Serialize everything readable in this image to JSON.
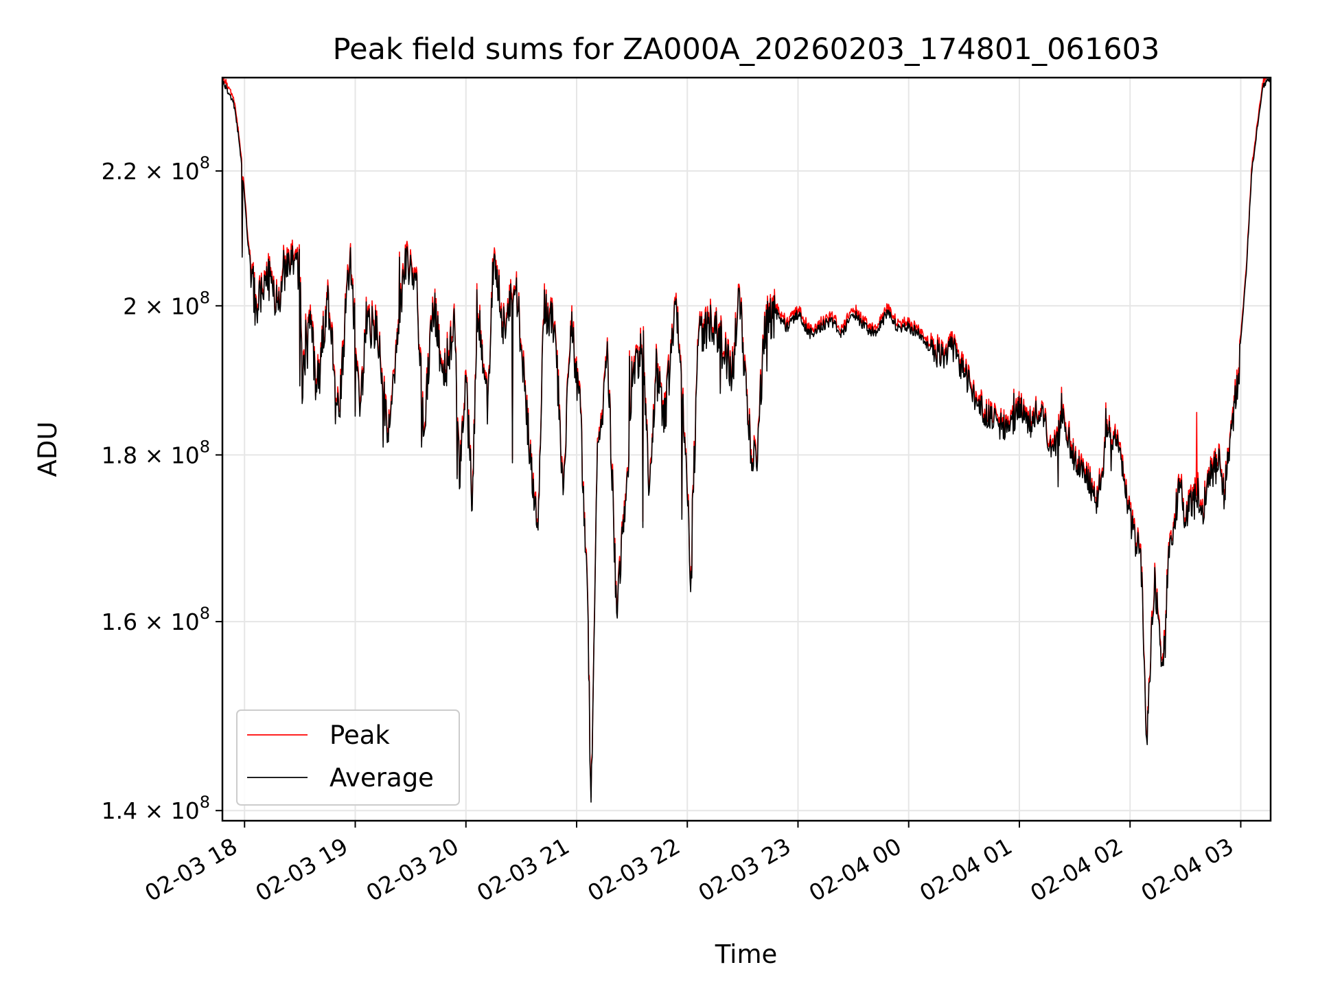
{
  "chart_data": {
    "type": "line",
    "title": "Peak field sums for ZA000A_20260203_174801_061603",
    "xlabel": "Time",
    "ylabel": "ADU",
    "yscale": "log",
    "x_unit": "hours since 2026-02-03 00:00",
    "xlim": [
      17.8,
      27.27
    ],
    "ylim": [
      139000000.0,
      235000000.0
    ],
    "grid": true,
    "legend_position": "lower-left",
    "x_ticks": [
      {
        "value": 18,
        "label": "02-03 18"
      },
      {
        "value": 19,
        "label": "02-03 19"
      },
      {
        "value": 20,
        "label": "02-03 20"
      },
      {
        "value": 21,
        "label": "02-03 21"
      },
      {
        "value": 22,
        "label": "02-03 22"
      },
      {
        "value": 23,
        "label": "02-03 23"
      },
      {
        "value": 24,
        "label": "02-04 00"
      },
      {
        "value": 25,
        "label": "02-04 01"
      },
      {
        "value": 26,
        "label": "02-04 02"
      },
      {
        "value": 27,
        "label": "02-04 03"
      }
    ],
    "y_ticks": [
      {
        "value": 140000000,
        "mantissa": "1.4",
        "exponent": "8"
      },
      {
        "value": 160000000,
        "mantissa": "1.6",
        "exponent": "8"
      },
      {
        "value": 180000000,
        "mantissa": "1.8",
        "exponent": "8"
      },
      {
        "value": 200000000,
        "mantissa": "2",
        "exponent": "8"
      },
      {
        "value": 220000000,
        "mantissa": "2.2",
        "exponent": "8"
      }
    ],
    "y_tick_times": "×",
    "y_tick_base": "10",
    "legend": [
      {
        "name": "Peak",
        "color": "#ff0000"
      },
      {
        "name": "Average",
        "color": "#000000"
      }
    ],
    "average_anchors": [
      [
        17.8,
        234500000.0
      ],
      [
        17.9,
        231000000.0
      ],
      [
        17.95,
        225000000.0
      ],
      [
        18.0,
        216000000.0
      ],
      [
        18.03,
        209000000.0
      ],
      [
        18.08,
        203000000.0
      ],
      [
        18.1,
        198000000.0
      ],
      [
        18.2,
        205000000.0
      ],
      [
        18.3,
        200000000.0
      ],
      [
        18.4,
        206000000.0
      ],
      [
        18.5,
        205000000.0
      ],
      [
        18.52,
        189000000.0
      ],
      [
        18.6,
        198000000.0
      ],
      [
        18.65,
        188000000.0
      ],
      [
        18.75,
        201000000.0
      ],
      [
        18.85,
        185000000.0
      ],
      [
        18.95,
        207000000.0
      ],
      [
        19.05,
        186000000.0
      ],
      [
        19.1,
        198000000.0
      ],
      [
        19.2,
        196000000.0
      ],
      [
        19.3,
        182000000.0
      ],
      [
        19.45,
        206000000.0
      ],
      [
        19.55,
        204000000.0
      ],
      [
        19.62,
        182000000.0
      ],
      [
        19.7,
        201000000.0
      ],
      [
        19.8,
        190000000.0
      ],
      [
        19.9,
        198000000.0
      ],
      [
        19.94,
        177000000.0
      ],
      [
        20.0,
        189000000.0
      ],
      [
        20.06,
        174000000.0
      ],
      [
        20.1,
        200000000.0
      ],
      [
        20.2,
        186000000.0
      ],
      [
        20.25,
        207000000.0
      ],
      [
        20.35,
        196000000.0
      ],
      [
        20.45,
        204000000.0
      ],
      [
        20.58,
        180000000.0
      ],
      [
        20.65,
        171000000.0
      ],
      [
        20.7,
        200000000.0
      ],
      [
        20.8,
        197000000.0
      ],
      [
        20.88,
        176000000.0
      ],
      [
        20.95,
        198000000.0
      ],
      [
        21.03,
        186000000.0
      ],
      [
        21.1,
        164000000.0
      ],
      [
        21.13,
        139000000.0
      ],
      [
        21.18,
        178000000.0
      ],
      [
        21.28,
        194000000.0
      ],
      [
        21.36,
        162000000.0
      ],
      [
        21.45,
        175000000.0
      ],
      [
        21.5,
        190000000.0
      ],
      [
        21.6,
        195000000.0
      ],
      [
        21.65,
        176000000.0
      ],
      [
        21.72,
        190000000.0
      ],
      [
        21.8,
        185000000.0
      ],
      [
        21.9,
        200000000.0
      ],
      [
        21.97,
        185000000.0
      ],
      [
        22.03,
        166000000.0
      ],
      [
        22.1,
        195000000.0
      ],
      [
        22.2,
        198000000.0
      ],
      [
        22.3,
        195000000.0
      ],
      [
        22.4,
        190000000.0
      ],
      [
        22.47,
        201000000.0
      ],
      [
        22.57,
        182000000.0
      ],
      [
        22.62,
        178000000.0
      ],
      [
        22.7,
        197000000.0
      ],
      [
        22.8,
        199000000.0
      ],
      [
        22.9,
        197000000.0
      ],
      [
        23.0,
        199000000.0
      ],
      [
        23.1,
        196000000.0
      ],
      [
        23.2,
        197000000.0
      ],
      [
        23.3,
        198000000.0
      ],
      [
        23.4,
        196000000.0
      ],
      [
        23.5,
        199000000.0
      ],
      [
        23.6,
        197000000.0
      ],
      [
        23.7,
        196000000.0
      ],
      [
        23.8,
        199000000.0
      ],
      [
        23.9,
        197000000.0
      ],
      [
        24.0,
        197000000.0
      ],
      [
        24.1,
        196000000.0
      ],
      [
        24.2,
        194000000.0
      ],
      [
        24.3,
        193000000.0
      ],
      [
        24.4,
        194000000.0
      ],
      [
        24.5,
        191000000.0
      ],
      [
        24.6,
        187000000.0
      ],
      [
        24.7,
        185000000.0
      ],
      [
        24.8,
        184000000.0
      ],
      [
        24.9,
        183000000.0
      ],
      [
        25.0,
        186000000.0
      ],
      [
        25.1,
        184000000.0
      ],
      [
        25.2,
        186000000.0
      ],
      [
        25.3,
        180000000.0
      ],
      [
        25.4,
        185000000.0
      ],
      [
        25.5,
        179000000.0
      ],
      [
        25.6,
        178000000.0
      ],
      [
        25.7,
        174000000.0
      ],
      [
        25.8,
        183000000.0
      ],
      [
        25.9,
        181000000.0
      ],
      [
        26.0,
        172000000.0
      ],
      [
        26.1,
        167000000.0
      ],
      [
        26.15,
        147000000.0
      ],
      [
        26.22,
        165000000.0
      ],
      [
        26.3,
        155000000.0
      ],
      [
        26.35,
        168000000.0
      ],
      [
        26.45,
        176000000.0
      ],
      [
        26.5,
        172000000.0
      ],
      [
        26.6,
        176000000.0
      ],
      [
        26.65,
        172000000.0
      ],
      [
        26.7,
        177000000.0
      ],
      [
        26.8,
        179000000.0
      ],
      [
        26.85,
        175000000.0
      ],
      [
        26.93,
        185000000.0
      ],
      [
        26.98,
        190000000.0
      ],
      [
        27.0,
        195000000.0
      ],
      [
        27.05,
        205000000.0
      ],
      [
        27.1,
        220000000.0
      ],
      [
        27.2,
        233500000.0
      ],
      [
        27.27,
        235000000.0
      ]
    ],
    "spikes": [
      [
        17.98,
        207000000.0
      ],
      [
        18.09,
        204000000.0
      ],
      [
        18.35,
        208000000.0
      ],
      [
        18.5,
        189000000.0
      ],
      [
        18.55,
        198000000.0
      ],
      [
        18.68,
        188000000.0
      ],
      [
        18.82,
        184000000.0
      ],
      [
        19.0,
        185000000.0
      ],
      [
        19.25,
        181000000.0
      ],
      [
        19.4,
        207000000.0
      ],
      [
        19.6,
        181000000.0
      ],
      [
        19.92,
        177000000.0
      ],
      [
        20.05,
        173000000.0
      ],
      [
        20.42,
        179000000.0
      ],
      [
        20.64,
        171000000.0
      ],
      [
        20.88,
        175000000.0
      ],
      [
        21.02,
        188000000.0
      ],
      [
        21.1,
        163000000.0
      ],
      [
        21.28,
        195000000.0
      ],
      [
        21.36,
        161000000.0
      ],
      [
        21.48,
        193000000.0
      ],
      [
        21.6,
        171000000.0
      ],
      [
        21.72,
        194000000.0
      ],
      [
        21.9,
        201000000.0
      ],
      [
        21.95,
        172000000.0
      ],
      [
        22.04,
        165000000.0
      ],
      [
        22.3,
        188000000.0
      ],
      [
        22.47,
        202000000.0
      ],
      [
        22.58,
        178000000.0
      ],
      [
        22.72,
        191000000.0
      ],
      [
        24.95,
        188000000.0
      ],
      [
        25.15,
        187000000.0
      ],
      [
        25.35,
        176000000.0
      ],
      [
        25.38,
        188000000.0
      ],
      [
        25.78,
        186000000.0
      ],
      [
        25.83,
        178000000.0
      ],
      [
        26.1,
        164000000.0
      ],
      [
        26.28,
        155000000.0
      ],
      [
        26.32,
        156000000.0
      ],
      [
        26.58,
        172000000.0
      ]
    ],
    "peak_outliers": [
      [
        26.6,
        185500000.0
      ]
    ]
  }
}
